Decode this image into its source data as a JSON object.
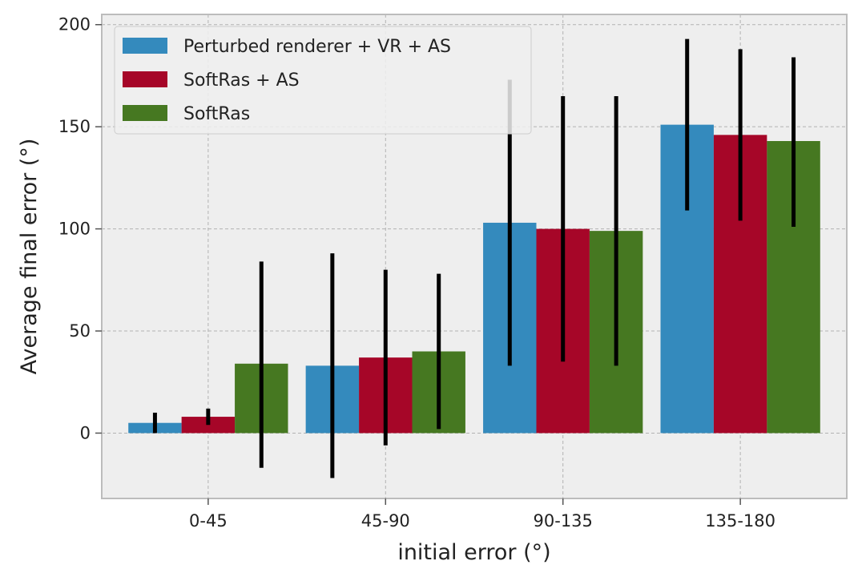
{
  "chart_data": {
    "type": "bar",
    "title": "",
    "xlabel": "initial error (°)",
    "ylabel": "Average final error (°)",
    "categories": [
      "0-45",
      "45-90",
      "90-135",
      "135-180"
    ],
    "ylim": [
      -32,
      205
    ],
    "yticks": [
      0,
      50,
      100,
      150,
      200
    ],
    "grid": true,
    "legend_position": "top-left",
    "series": [
      {
        "name": "Perturbed renderer + VR + AS",
        "color": "#348abd",
        "values": [
          5,
          33,
          103,
          151
        ],
        "err_low": [
          0,
          -22,
          33,
          109
        ],
        "err_high": [
          10,
          88,
          173,
          193
        ]
      },
      {
        "name": "SoftRas + AS",
        "color": "#a60628",
        "values": [
          8,
          37,
          100,
          146
        ],
        "err_low": [
          4,
          -6,
          35,
          104
        ],
        "err_high": [
          12,
          80,
          165,
          188
        ]
      },
      {
        "name": "SoftRas",
        "color": "#467821",
        "values": [
          34,
          40,
          99,
          143
        ],
        "err_low": [
          -17,
          2,
          33,
          101
        ],
        "err_high": [
          84,
          78,
          165,
          184
        ]
      }
    ]
  }
}
